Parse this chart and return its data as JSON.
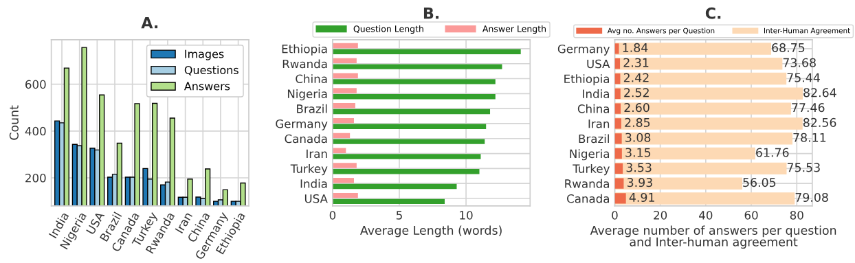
{
  "chart_data": [
    {
      "type": "bar",
      "title": "A.",
      "ylabel": "Count",
      "categories": [
        "India",
        "Nigeria",
        "USA",
        "Brazil",
        "Canada",
        "Turkey",
        "Rwanda",
        "Iran",
        "China",
        "Germany",
        "Ethiopia"
      ],
      "series": [
        {
          "name": "Images",
          "color": "#1f78b4",
          "values": [
            443,
            343,
            327,
            203,
            203,
            240,
            170,
            117,
            118,
            100,
            100
          ]
        },
        {
          "name": "Questions",
          "color": "#a6cee3",
          "values": [
            435,
            337,
            319,
            215,
            203,
            195,
            182,
            117,
            112,
            106,
            100
          ]
        },
        {
          "name": "Answers",
          "color": "#b2df8a",
          "values": [
            669,
            757,
            554,
            348,
            517,
            518,
            455,
            195,
            238,
            149,
            178
          ]
        }
      ],
      "ylim": [
        80,
        790
      ],
      "yticks": [
        200,
        400,
        600
      ],
      "grid": true,
      "legend": "top right"
    },
    {
      "type": "bar",
      "title": "B.",
      "xlabel": "Average Length (words)",
      "orientation": "horizontal",
      "categories": [
        "Ethiopia",
        "Rwanda",
        "China",
        "Nigeria",
        "Brazil",
        "Germany",
        "Canada",
        "Iran",
        "Turkey",
        "India",
        "USA"
      ],
      "series": [
        {
          "name": "Question Length",
          "color": "#33a02c",
          "values": [
            14.1,
            12.7,
            12.2,
            12.2,
            11.8,
            11.5,
            11.4,
            11.1,
            11.0,
            9.3,
            8.4
          ]
        },
        {
          "name": "Answer Length",
          "color": "#fb9a99",
          "values": [
            1.9,
            1.8,
            1.9,
            1.8,
            1.7,
            1.6,
            1.3,
            1.0,
            1.8,
            1.6,
            1.9
          ]
        }
      ],
      "xlim": [
        0,
        14.8
      ],
      "xticks": [
        0,
        5,
        10
      ],
      "grid": true,
      "legend": "top"
    },
    {
      "type": "bar",
      "title": "C.",
      "xlabel": "Average number of answers per question\nand Inter-human agreement",
      "orientation": "horizontal",
      "categories": [
        "Germany",
        "USA",
        "Ethiopia",
        "India",
        "China",
        "Iran",
        "Brazil",
        "Nigeria",
        "Turkey",
        "Rwanda",
        "Canada"
      ],
      "series": [
        {
          "name": "Avg no. Answers per Question",
          "color": "#ee6a4a",
          "values": [
            1.84,
            2.31,
            2.42,
            2.52,
            2.6,
            2.85,
            3.08,
            3.15,
            3.53,
            3.93,
            4.91
          ],
          "value_labels": [
            "1.84",
            "2.31",
            "2.42",
            "2.52",
            "2.60",
            "2.85",
            "3.08",
            "3.15",
            "3.53",
            "3.93",
            "4.91"
          ]
        },
        {
          "name": "Inter-Human Agreement",
          "color": "#fdd9b4",
          "values": [
            68.75,
            73.68,
            75.44,
            82.64,
            77.46,
            82.56,
            78.11,
            61.76,
            75.53,
            56.05,
            79.08
          ],
          "value_labels": [
            "68.75",
            "73.68",
            "75.44",
            "82.64",
            "77.46",
            "82.56",
            "78.11",
            "61.76",
            "75.53",
            "56.05",
            "79.08"
          ]
        }
      ],
      "xlim": [
        0,
        86.8
      ],
      "xticks": [
        0,
        20,
        40,
        60,
        80
      ],
      "grid": true,
      "legend": "top"
    }
  ]
}
